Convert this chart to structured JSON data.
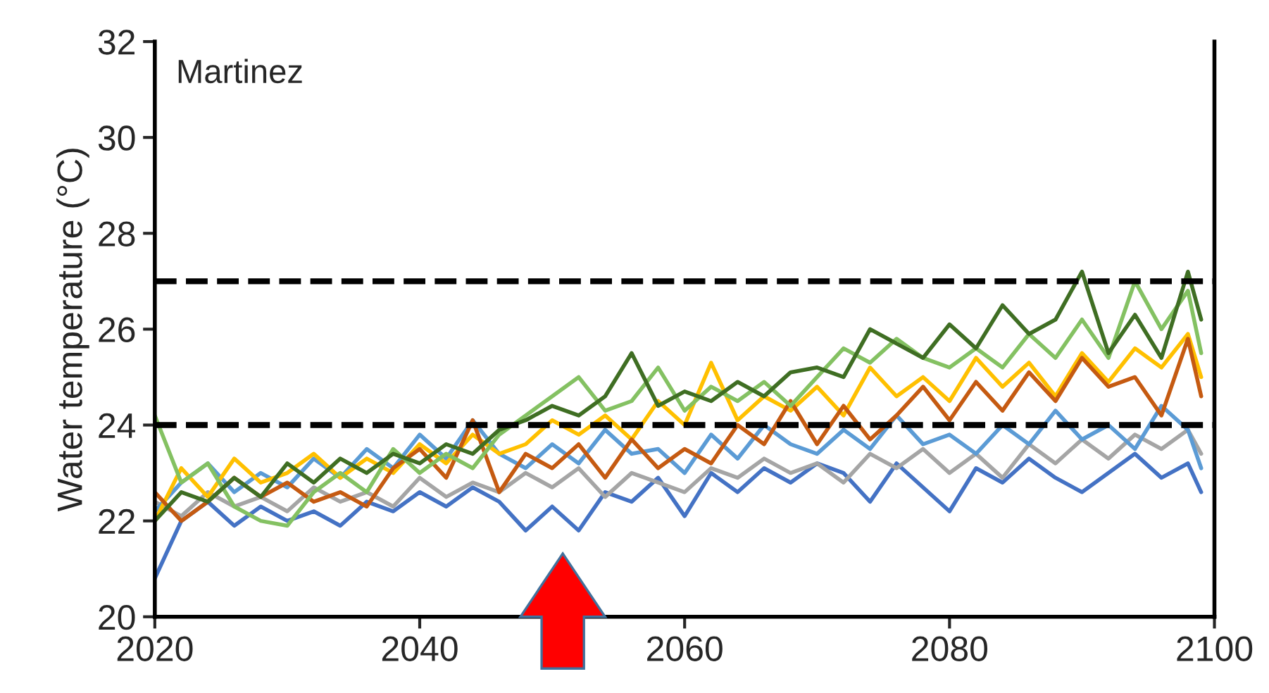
{
  "chart_data": {
    "type": "line",
    "ylabel": "Water temperature (°C)",
    "annotations": [
      "Martinez"
    ],
    "x": [
      2020,
      2022,
      2024,
      2026,
      2028,
      2030,
      2032,
      2034,
      2036,
      2038,
      2040,
      2042,
      2044,
      2046,
      2048,
      2050,
      2052,
      2054,
      2056,
      2058,
      2060,
      2062,
      2064,
      2066,
      2068,
      2070,
      2072,
      2074,
      2076,
      2078,
      2080,
      2082,
      2084,
      2086,
      2088,
      2090,
      2092,
      2094,
      2096,
      2098,
      2099
    ],
    "series": [
      {
        "color": "#4472c4",
        "values": [
          20.8,
          22.0,
          22.4,
          21.9,
          22.3,
          22.0,
          22.2,
          21.9,
          22.4,
          22.2,
          22.6,
          22.3,
          22.7,
          22.4,
          21.8,
          22.3,
          21.8,
          22.6,
          22.4,
          22.9,
          22.1,
          23.0,
          22.6,
          23.1,
          22.8,
          23.2,
          23.0,
          22.4,
          23.2,
          22.7,
          22.2,
          23.1,
          22.8,
          23.3,
          22.9,
          22.6,
          23.0,
          23.4,
          22.9,
          23.2,
          22.6
        ]
      },
      {
        "color": "#a5a5a5",
        "values": [
          22.4,
          22.1,
          22.6,
          22.3,
          22.5,
          22.2,
          22.7,
          22.4,
          22.6,
          22.3,
          22.9,
          22.5,
          22.8,
          22.6,
          23.0,
          22.7,
          23.1,
          22.5,
          23.0,
          22.8,
          22.6,
          23.1,
          22.9,
          23.3,
          23.0,
          23.2,
          22.8,
          23.4,
          23.1,
          23.5,
          23.0,
          23.4,
          22.9,
          23.6,
          23.2,
          23.7,
          23.3,
          23.8,
          23.5,
          23.9,
          23.4
        ]
      },
      {
        "color": "#5b9bd5",
        "values": [
          22.2,
          22.8,
          23.2,
          22.6,
          23.0,
          22.7,
          23.3,
          22.9,
          23.5,
          23.1,
          23.8,
          23.3,
          24.1,
          23.4,
          23.1,
          23.6,
          23.2,
          23.9,
          23.4,
          23.5,
          23.0,
          23.8,
          23.3,
          24.0,
          23.6,
          23.4,
          23.9,
          23.5,
          24.2,
          23.6,
          23.8,
          23.4,
          24.0,
          23.6,
          24.3,
          23.7,
          24.0,
          23.5,
          24.4,
          23.9,
          23.1
        ]
      },
      {
        "color": "#ffc000",
        "values": [
          22.0,
          23.1,
          22.5,
          23.3,
          22.8,
          23.0,
          23.4,
          22.9,
          23.3,
          23.0,
          23.6,
          23.2,
          23.8,
          23.4,
          23.6,
          24.1,
          23.8,
          24.2,
          23.7,
          24.5,
          24.0,
          25.3,
          24.1,
          24.6,
          24.3,
          24.8,
          24.2,
          25.2,
          24.6,
          25.0,
          24.5,
          25.4,
          24.8,
          25.3,
          24.6,
          25.5,
          24.9,
          25.6,
          25.2,
          25.9,
          25.0
        ]
      },
      {
        "color": "#c55a11",
        "values": [
          22.6,
          22.0,
          22.4,
          22.9,
          22.5,
          22.8,
          22.4,
          22.6,
          22.3,
          23.1,
          23.5,
          22.9,
          24.1,
          22.6,
          23.4,
          23.1,
          23.6,
          22.9,
          23.7,
          23.1,
          23.5,
          23.2,
          24.0,
          23.6,
          24.5,
          23.6,
          24.4,
          23.7,
          24.2,
          24.8,
          24.1,
          24.9,
          24.3,
          25.1,
          24.5,
          25.4,
          24.8,
          25.0,
          24.2,
          25.8,
          24.6
        ]
      },
      {
        "color": "#84c162",
        "values": [
          24.2,
          22.8,
          23.2,
          22.3,
          22.0,
          21.9,
          22.6,
          23.0,
          22.6,
          23.5,
          23.0,
          23.4,
          23.1,
          23.8,
          24.2,
          24.6,
          25.0,
          24.3,
          24.5,
          25.2,
          24.3,
          24.8,
          24.5,
          24.9,
          24.4,
          25.0,
          25.6,
          25.3,
          25.8,
          25.4,
          25.2,
          25.6,
          25.2,
          25.9,
          25.4,
          26.2,
          25.4,
          27.0,
          26.0,
          26.8,
          25.5
        ]
      },
      {
        "color": "#3f6e23",
        "values": [
          22.0,
          22.6,
          22.4,
          22.9,
          22.5,
          23.2,
          22.8,
          23.3,
          23.0,
          23.4,
          23.2,
          23.6,
          23.4,
          23.9,
          24.1,
          24.4,
          24.2,
          24.6,
          25.5,
          24.4,
          24.7,
          24.5,
          24.9,
          24.6,
          25.1,
          25.2,
          25.0,
          26.0,
          25.7,
          25.4,
          26.1,
          25.6,
          26.5,
          25.9,
          26.2,
          27.2,
          25.5,
          26.3,
          25.4,
          27.2,
          26.2
        ]
      }
    ],
    "xlim": [
      2020,
      2100
    ],
    "ylim": [
      20,
      32
    ],
    "xticks": [
      2020,
      2040,
      2060,
      2080,
      2100
    ],
    "yticks": [
      20,
      22,
      24,
      26,
      28,
      30,
      32
    ],
    "ref_lines": [
      {
        "axis": "y",
        "value": 27,
        "color": "#000000",
        "line_style": "dashed"
      },
      {
        "axis": "y",
        "value": 24,
        "color": "#000000",
        "line_style": "dashed"
      }
    ],
    "grid": false,
    "legend": false,
    "marker": "none",
    "line_style": "solid"
  }
}
